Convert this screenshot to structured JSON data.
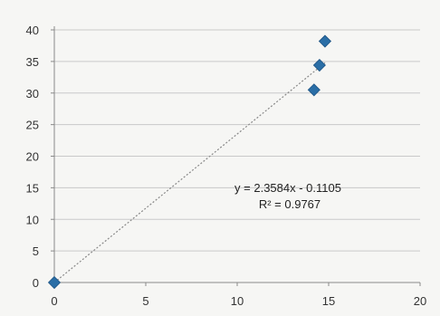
{
  "chart_data": {
    "type": "scatter",
    "title": "",
    "xlabel": "",
    "ylabel": "",
    "xlim": [
      0,
      20
    ],
    "ylim": [
      0,
      40
    ],
    "x_ticks": [
      0,
      5,
      10,
      15,
      20
    ],
    "y_ticks": [
      0,
      5,
      10,
      15,
      20,
      25,
      30,
      35,
      40
    ],
    "grid": "horizontal",
    "legend": "none",
    "series": [
      {
        "marker": "diamond",
        "color": "#2a6ea6",
        "points": [
          {
            "x": 0,
            "y": 0
          },
          {
            "x": 14.2,
            "y": 30.5
          },
          {
            "x": 14.5,
            "y": 34.4
          },
          {
            "x": 14.8,
            "y": 38.2
          }
        ]
      }
    ],
    "trendline": {
      "kind": "linear",
      "slope": 2.3584,
      "intercept": -0.1105,
      "x_range": [
        0,
        14.8
      ],
      "color": "#888888"
    },
    "annotations": {
      "equation": "y = 2.3584x - 0.1105",
      "r_squared": "R² = 0.9767"
    }
  }
}
